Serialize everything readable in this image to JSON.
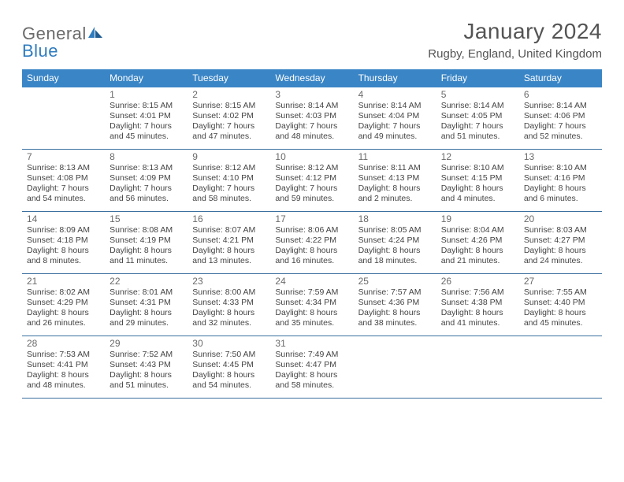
{
  "brand": {
    "word1": "General",
    "word2": "Blue"
  },
  "title": "January 2024",
  "location": "Rugby, England, United Kingdom",
  "colors": {
    "header_bg": "#3a85c6",
    "header_text": "#ffffff",
    "row_border": "#3a6fa0",
    "text": "#444444",
    "title_text": "#545454",
    "logo_gray": "#6b6b6b",
    "logo_blue": "#2f7bbf",
    "page_bg": "#ffffff"
  },
  "typography": {
    "title_fontsize": 28,
    "location_fontsize": 15,
    "dow_fontsize": 12,
    "daynum_fontsize": 12,
    "body_fontsize": 10.5
  },
  "dow": [
    "Sunday",
    "Monday",
    "Tuesday",
    "Wednesday",
    "Thursday",
    "Friday",
    "Saturday"
  ],
  "weeks": [
    [
      null,
      {
        "n": "1",
        "sr": "Sunrise: 8:15 AM",
        "ss": "Sunset: 4:01 PM",
        "dl1": "Daylight: 7 hours",
        "dl2": "and 45 minutes."
      },
      {
        "n": "2",
        "sr": "Sunrise: 8:15 AM",
        "ss": "Sunset: 4:02 PM",
        "dl1": "Daylight: 7 hours",
        "dl2": "and 47 minutes."
      },
      {
        "n": "3",
        "sr": "Sunrise: 8:14 AM",
        "ss": "Sunset: 4:03 PM",
        "dl1": "Daylight: 7 hours",
        "dl2": "and 48 minutes."
      },
      {
        "n": "4",
        "sr": "Sunrise: 8:14 AM",
        "ss": "Sunset: 4:04 PM",
        "dl1": "Daylight: 7 hours",
        "dl2": "and 49 minutes."
      },
      {
        "n": "5",
        "sr": "Sunrise: 8:14 AM",
        "ss": "Sunset: 4:05 PM",
        "dl1": "Daylight: 7 hours",
        "dl2": "and 51 minutes."
      },
      {
        "n": "6",
        "sr": "Sunrise: 8:14 AM",
        "ss": "Sunset: 4:06 PM",
        "dl1": "Daylight: 7 hours",
        "dl2": "and 52 minutes."
      }
    ],
    [
      {
        "n": "7",
        "sr": "Sunrise: 8:13 AM",
        "ss": "Sunset: 4:08 PM",
        "dl1": "Daylight: 7 hours",
        "dl2": "and 54 minutes."
      },
      {
        "n": "8",
        "sr": "Sunrise: 8:13 AM",
        "ss": "Sunset: 4:09 PM",
        "dl1": "Daylight: 7 hours",
        "dl2": "and 56 minutes."
      },
      {
        "n": "9",
        "sr": "Sunrise: 8:12 AM",
        "ss": "Sunset: 4:10 PM",
        "dl1": "Daylight: 7 hours",
        "dl2": "and 58 minutes."
      },
      {
        "n": "10",
        "sr": "Sunrise: 8:12 AM",
        "ss": "Sunset: 4:12 PM",
        "dl1": "Daylight: 7 hours",
        "dl2": "and 59 minutes."
      },
      {
        "n": "11",
        "sr": "Sunrise: 8:11 AM",
        "ss": "Sunset: 4:13 PM",
        "dl1": "Daylight: 8 hours",
        "dl2": "and 2 minutes."
      },
      {
        "n": "12",
        "sr": "Sunrise: 8:10 AM",
        "ss": "Sunset: 4:15 PM",
        "dl1": "Daylight: 8 hours",
        "dl2": "and 4 minutes."
      },
      {
        "n": "13",
        "sr": "Sunrise: 8:10 AM",
        "ss": "Sunset: 4:16 PM",
        "dl1": "Daylight: 8 hours",
        "dl2": "and 6 minutes."
      }
    ],
    [
      {
        "n": "14",
        "sr": "Sunrise: 8:09 AM",
        "ss": "Sunset: 4:18 PM",
        "dl1": "Daylight: 8 hours",
        "dl2": "and 8 minutes."
      },
      {
        "n": "15",
        "sr": "Sunrise: 8:08 AM",
        "ss": "Sunset: 4:19 PM",
        "dl1": "Daylight: 8 hours",
        "dl2": "and 11 minutes."
      },
      {
        "n": "16",
        "sr": "Sunrise: 8:07 AM",
        "ss": "Sunset: 4:21 PM",
        "dl1": "Daylight: 8 hours",
        "dl2": "and 13 minutes."
      },
      {
        "n": "17",
        "sr": "Sunrise: 8:06 AM",
        "ss": "Sunset: 4:22 PM",
        "dl1": "Daylight: 8 hours",
        "dl2": "and 16 minutes."
      },
      {
        "n": "18",
        "sr": "Sunrise: 8:05 AM",
        "ss": "Sunset: 4:24 PM",
        "dl1": "Daylight: 8 hours",
        "dl2": "and 18 minutes."
      },
      {
        "n": "19",
        "sr": "Sunrise: 8:04 AM",
        "ss": "Sunset: 4:26 PM",
        "dl1": "Daylight: 8 hours",
        "dl2": "and 21 minutes."
      },
      {
        "n": "20",
        "sr": "Sunrise: 8:03 AM",
        "ss": "Sunset: 4:27 PM",
        "dl1": "Daylight: 8 hours",
        "dl2": "and 24 minutes."
      }
    ],
    [
      {
        "n": "21",
        "sr": "Sunrise: 8:02 AM",
        "ss": "Sunset: 4:29 PM",
        "dl1": "Daylight: 8 hours",
        "dl2": "and 26 minutes."
      },
      {
        "n": "22",
        "sr": "Sunrise: 8:01 AM",
        "ss": "Sunset: 4:31 PM",
        "dl1": "Daylight: 8 hours",
        "dl2": "and 29 minutes."
      },
      {
        "n": "23",
        "sr": "Sunrise: 8:00 AM",
        "ss": "Sunset: 4:33 PM",
        "dl1": "Daylight: 8 hours",
        "dl2": "and 32 minutes."
      },
      {
        "n": "24",
        "sr": "Sunrise: 7:59 AM",
        "ss": "Sunset: 4:34 PM",
        "dl1": "Daylight: 8 hours",
        "dl2": "and 35 minutes."
      },
      {
        "n": "25",
        "sr": "Sunrise: 7:57 AM",
        "ss": "Sunset: 4:36 PM",
        "dl1": "Daylight: 8 hours",
        "dl2": "and 38 minutes."
      },
      {
        "n": "26",
        "sr": "Sunrise: 7:56 AM",
        "ss": "Sunset: 4:38 PM",
        "dl1": "Daylight: 8 hours",
        "dl2": "and 41 minutes."
      },
      {
        "n": "27",
        "sr": "Sunrise: 7:55 AM",
        "ss": "Sunset: 4:40 PM",
        "dl1": "Daylight: 8 hours",
        "dl2": "and 45 minutes."
      }
    ],
    [
      {
        "n": "28",
        "sr": "Sunrise: 7:53 AM",
        "ss": "Sunset: 4:41 PM",
        "dl1": "Daylight: 8 hours",
        "dl2": "and 48 minutes."
      },
      {
        "n": "29",
        "sr": "Sunrise: 7:52 AM",
        "ss": "Sunset: 4:43 PM",
        "dl1": "Daylight: 8 hours",
        "dl2": "and 51 minutes."
      },
      {
        "n": "30",
        "sr": "Sunrise: 7:50 AM",
        "ss": "Sunset: 4:45 PM",
        "dl1": "Daylight: 8 hours",
        "dl2": "and 54 minutes."
      },
      {
        "n": "31",
        "sr": "Sunrise: 7:49 AM",
        "ss": "Sunset: 4:47 PM",
        "dl1": "Daylight: 8 hours",
        "dl2": "and 58 minutes."
      },
      null,
      null,
      null
    ]
  ]
}
